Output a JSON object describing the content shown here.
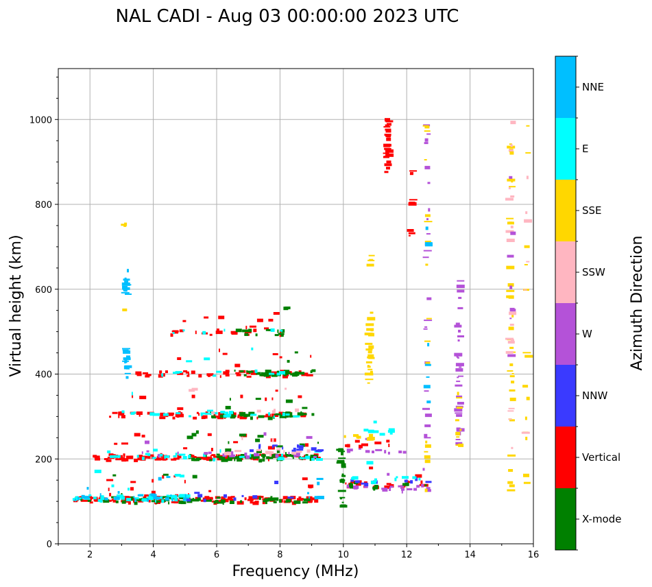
{
  "chart_data": {
    "type": "scatter",
    "title": "NAL CADI - Aug 03 00:00:00 2023 UTC",
    "xlabel": "Frequency (MHz)",
    "ylabel": "Virtual height (km)",
    "xlim": [
      1,
      16
    ],
    "ylim": [
      0,
      1120
    ],
    "xticks": [
      2,
      4,
      6,
      8,
      10,
      12,
      14,
      16
    ],
    "yticks": [
      0,
      200,
      400,
      600,
      800,
      1000
    ],
    "xtick_labels": [
      "2",
      "4",
      "6",
      "8",
      "10",
      "12",
      "14",
      "16"
    ],
    "ytick_labels": [
      "0",
      "200",
      "400",
      "600",
      "800",
      "1000"
    ],
    "grid": true,
    "colorbar": {
      "title": "Azimuth Direction",
      "categories": [
        {
          "name": "X-mode",
          "color": "#008000"
        },
        {
          "name": "Vertical",
          "color": "#ff0000"
        },
        {
          "name": "NNW",
          "color": "#3a3aff"
        },
        {
          "name": "W",
          "color": "#b452d8"
        },
        {
          "name": "SSW",
          "color": "#ffb6c1"
        },
        {
          "name": "SSE",
          "color": "#ffd700"
        },
        {
          "name": "E",
          "color": "#00ffff"
        },
        {
          "name": "NNE",
          "color": "#00bfff"
        }
      ]
    },
    "segments": [
      {
        "f0": 1.45,
        "f1": 9.2,
        "h": 103,
        "dir": "Vertical",
        "count": 140
      },
      {
        "f0": 1.45,
        "f1": 9.2,
        "h": 103,
        "dir": "X-mode",
        "count": 60
      },
      {
        "f0": 1.45,
        "f1": 5.0,
        "h": 108,
        "dir": "E",
        "count": 40
      },
      {
        "f0": 1.45,
        "f1": 5.0,
        "h": 110,
        "dir": "NNE",
        "count": 25
      },
      {
        "f0": 5.0,
        "f1": 9.2,
        "h": 108,
        "dir": "NNW",
        "count": 10
      },
      {
        "f0": 8.5,
        "f1": 9.2,
        "h": 115,
        "dir": "NNE",
        "count": 6
      },
      {
        "f0": 2.0,
        "f1": 9.2,
        "h": 203,
        "dir": "Vertical",
        "count": 110
      },
      {
        "f0": 5.0,
        "f1": 9.2,
        "h": 203,
        "dir": "X-mode",
        "count": 70
      },
      {
        "f0": 2.0,
        "f1": 9.2,
        "h": 205,
        "dir": "E",
        "count": 30
      },
      {
        "f0": 3.0,
        "f1": 9.2,
        "h": 210,
        "dir": "W",
        "count": 25
      },
      {
        "f0": 6.0,
        "f1": 9.2,
        "h": 215,
        "dir": "SSW",
        "count": 15
      },
      {
        "f0": 7.0,
        "f1": 9.2,
        "h": 225,
        "dir": "NNW",
        "count": 15
      },
      {
        "f0": 2.6,
        "f1": 9.0,
        "h": 302,
        "dir": "Vertical",
        "count": 70
      },
      {
        "f0": 5.5,
        "f1": 9.0,
        "h": 302,
        "dir": "X-mode",
        "count": 40
      },
      {
        "f0": 3.0,
        "f1": 8.5,
        "h": 306,
        "dir": "E",
        "count": 25
      },
      {
        "f0": 5.0,
        "f1": 8.5,
        "h": 310,
        "dir": "SSW",
        "count": 8
      },
      {
        "f0": 3.3,
        "f1": 9.0,
        "h": 400,
        "dir": "Vertical",
        "count": 55
      },
      {
        "f0": 6.5,
        "f1": 9.0,
        "h": 402,
        "dir": "X-mode",
        "count": 35
      },
      {
        "f0": 4.2,
        "f1": 8.0,
        "h": 402,
        "dir": "E",
        "count": 12
      },
      {
        "f0": 4.4,
        "f1": 8.2,
        "h": 498,
        "dir": "Vertical",
        "count": 25
      },
      {
        "f0": 6.6,
        "f1": 8.2,
        "h": 498,
        "dir": "X-mode",
        "count": 14
      },
      {
        "f0": 4.6,
        "f1": 8.2,
        "h": 498,
        "dir": "E",
        "count": 6
      },
      {
        "f0": 10.0,
        "f1": 12.6,
        "h": 140,
        "dir": "Vertical",
        "count": 25
      },
      {
        "f0": 10.0,
        "f1": 12.6,
        "h": 130,
        "dir": "W",
        "count": 20
      },
      {
        "f0": 10.0,
        "f1": 12.6,
        "h": 135,
        "dir": "X-mode",
        "count": 12
      },
      {
        "f0": 10.0,
        "f1": 12.6,
        "h": 145,
        "dir": "NNW",
        "count": 10
      },
      {
        "f0": 10.0,
        "f1": 12.6,
        "h": 150,
        "dir": "E",
        "count": 10
      },
      {
        "f0": 10.0,
        "f1": 12.0,
        "h": 220,
        "dir": "W",
        "count": 12
      },
      {
        "f0": 10.0,
        "f1": 12.0,
        "h": 250,
        "dir": "SSE",
        "count": 8
      },
      {
        "f0": 10.0,
        "f1": 11.6,
        "h": 265,
        "dir": "E",
        "count": 8
      },
      {
        "f0": 10.0,
        "f1": 11.6,
        "h": 235,
        "dir": "Vertical",
        "count": 8
      }
    ],
    "columns": [
      {
        "f": 3.15,
        "h0": 390,
        "h1": 470,
        "dir": "NNE",
        "count": 14
      },
      {
        "f": 3.15,
        "h0": 580,
        "h1": 650,
        "dir": "NNE",
        "count": 12
      },
      {
        "f": 3.1,
        "h0": 745,
        "h1": 765,
        "dir": "SSE",
        "count": 3
      },
      {
        "f": 3.1,
        "h0": 550,
        "h1": 555,
        "dir": "SSE",
        "count": 1
      },
      {
        "f": 9.95,
        "h0": 85,
        "h1": 230,
        "dir": "X-mode",
        "count": 22
      },
      {
        "f": 10.85,
        "h0": 375,
        "h1": 545,
        "dir": "SSE",
        "count": 26
      },
      {
        "f": 10.85,
        "h0": 655,
        "h1": 680,
        "dir": "SSE",
        "count": 5
      },
      {
        "f": 11.4,
        "h0": 875,
        "h1": 1015,
        "dir": "Vertical",
        "count": 24
      },
      {
        "f": 12.15,
        "h0": 720,
        "h1": 740,
        "dir": "Vertical",
        "count": 3
      },
      {
        "f": 12.15,
        "h0": 800,
        "h1": 820,
        "dir": "Vertical",
        "count": 3
      },
      {
        "f": 12.15,
        "h0": 865,
        "h1": 885,
        "dir": "Vertical",
        "count": 3
      },
      {
        "f": 12.65,
        "h0": 90,
        "h1": 990,
        "dir": "W",
        "count": 26
      },
      {
        "f": 12.65,
        "h0": 90,
        "h1": 990,
        "dir": "SSE",
        "count": 18
      },
      {
        "f": 12.65,
        "h0": 300,
        "h1": 800,
        "dir": "NNE",
        "count": 8
      },
      {
        "f": 13.65,
        "h0": 230,
        "h1": 620,
        "dir": "W",
        "count": 34
      },
      {
        "f": 13.65,
        "h0": 230,
        "h1": 400,
        "dir": "SSE",
        "count": 10
      },
      {
        "f": 15.3,
        "h0": 90,
        "h1": 1000,
        "dir": "SSE",
        "count": 36
      },
      {
        "f": 15.3,
        "h0": 200,
        "h1": 1000,
        "dir": "SSW",
        "count": 20
      },
      {
        "f": 15.3,
        "h0": 350,
        "h1": 1000,
        "dir": "W",
        "count": 8
      },
      {
        "f": 15.8,
        "h0": 90,
        "h1": 1000,
        "dir": "SSE",
        "count": 14
      },
      {
        "f": 15.8,
        "h0": 200,
        "h1": 1000,
        "dir": "SSW",
        "count": 6
      }
    ]
  }
}
